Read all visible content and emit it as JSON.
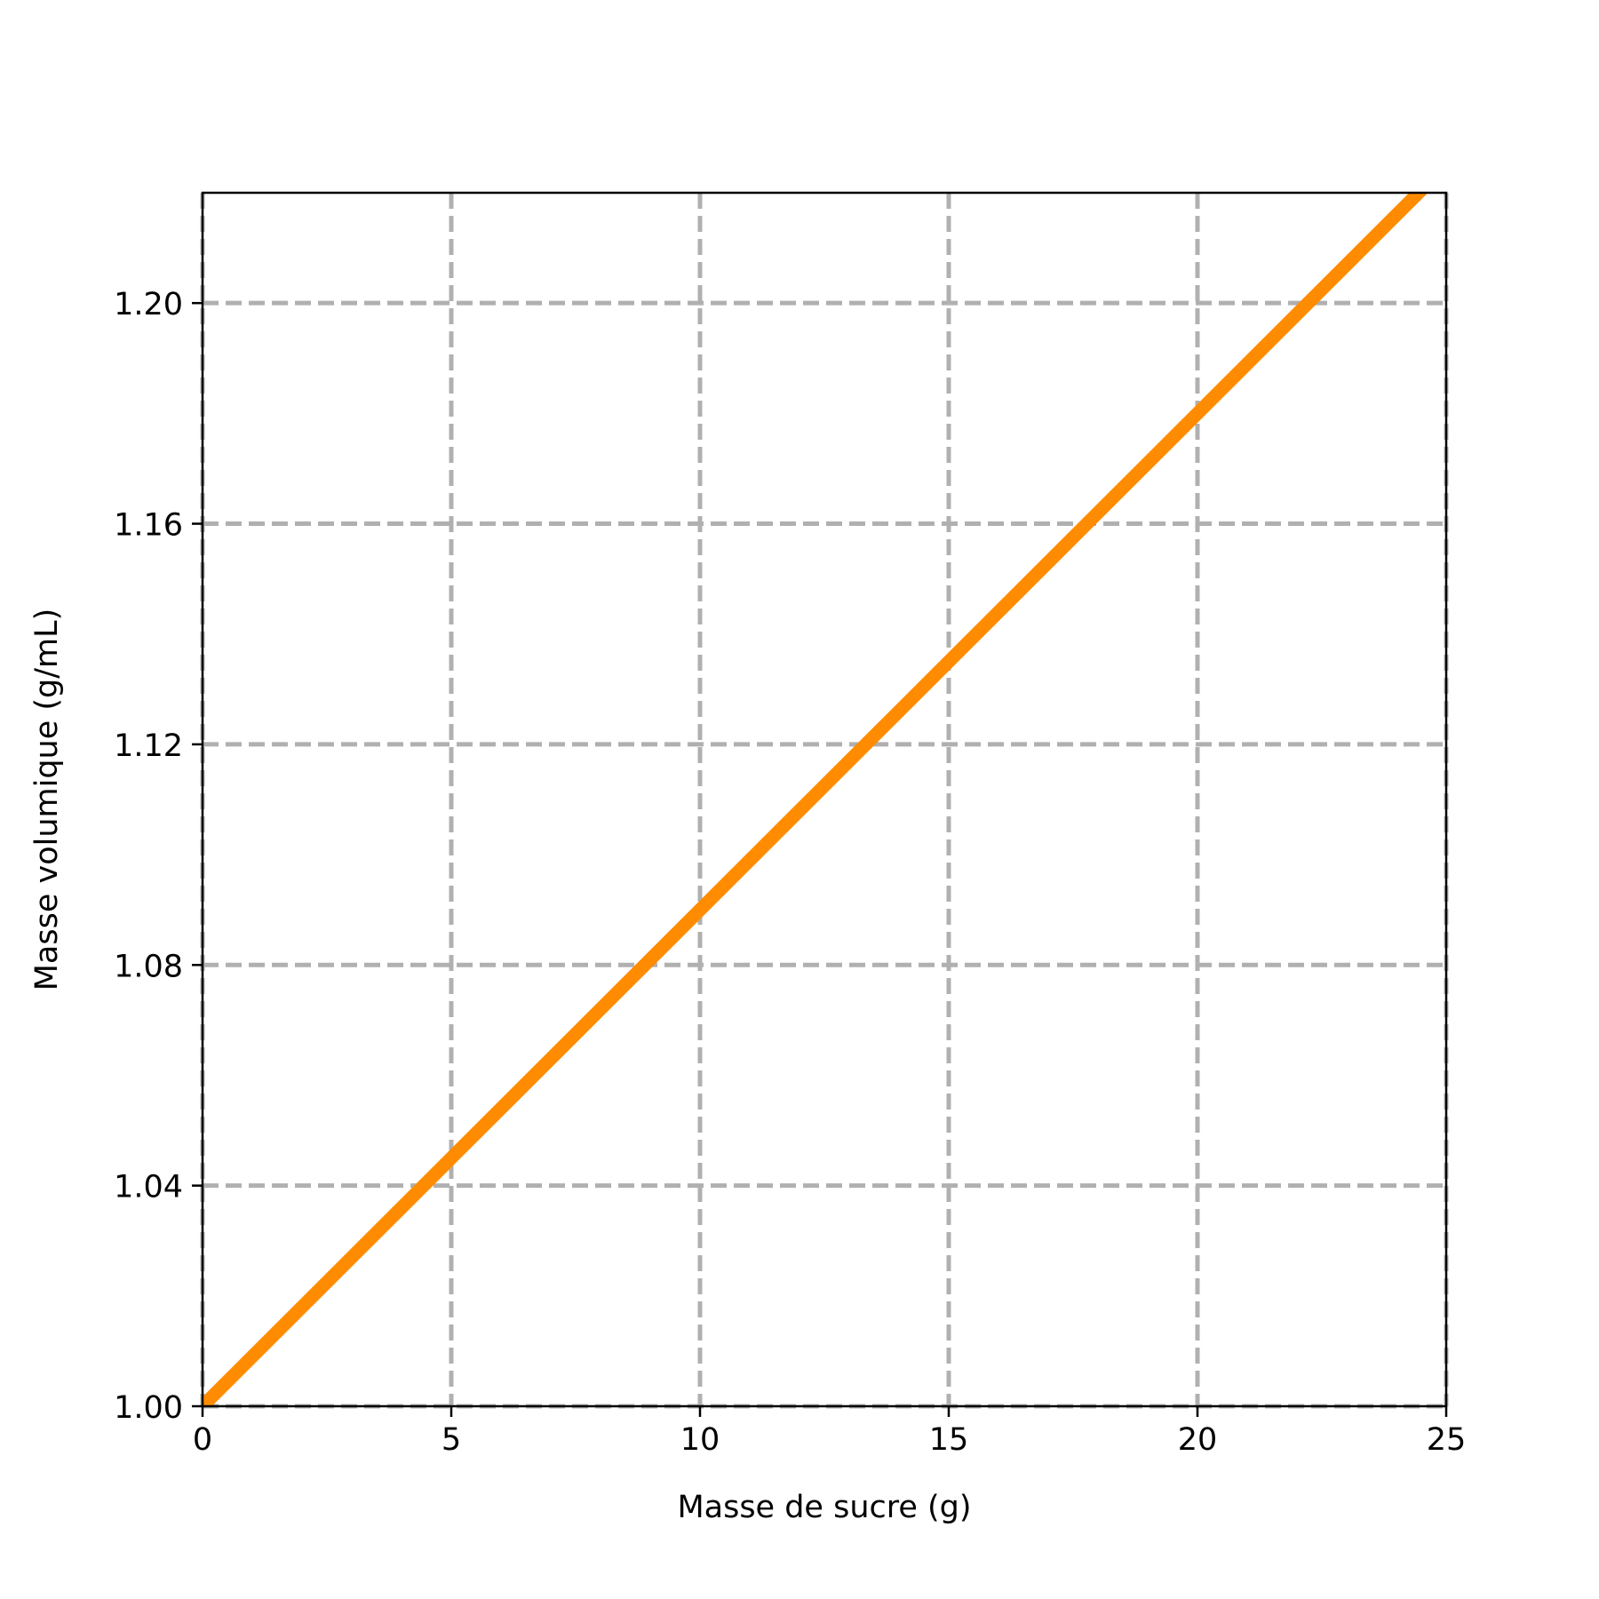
{
  "chart_data": {
    "type": "line",
    "title": "",
    "xlabel": "Masse de sucre (g)",
    "ylabel": "Masse volumique (g/mL)",
    "xlim": [
      0,
      25
    ],
    "ylim": [
      1.0,
      1.22
    ],
    "xticks": [
      0,
      5,
      10,
      15,
      20,
      25
    ],
    "xtick_labels": [
      "0",
      "5",
      "10",
      "15",
      "20",
      "25"
    ],
    "yticks": [
      1.0,
      1.04,
      1.08,
      1.12,
      1.16,
      1.2
    ],
    "ytick_labels": [
      "1.00",
      "1.04",
      "1.08",
      "1.12",
      "1.16",
      "1.20"
    ],
    "grid": true,
    "legend": "none",
    "series": [
      {
        "color": "#ff8c00",
        "x": [
          0,
          25
        ],
        "y": [
          1.0,
          1.225
        ]
      }
    ],
    "colors": {
      "line": "#ff8c00",
      "grid": "#b0b0b0",
      "axes": "#000000"
    }
  }
}
